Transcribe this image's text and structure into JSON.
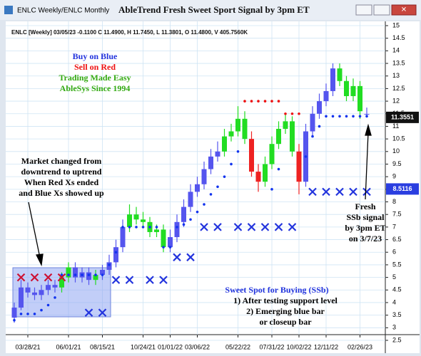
{
  "chart_data": {
    "type": "candlestick",
    "window_title": "ENLC Weekly/ENLC Monthly",
    "title": "AbleTrend Fresh Sweet Sport Signal by 3pm ET",
    "header": "ENLC [Weekly] 03/05/23 -0.1100 C 11.4900, H 11.7450, L 11.3801, O 11.4800, V 405.7560K",
    "legend_lines": [
      "Buy on Blue",
      "Sell on Red",
      "Trading Made Easy",
      "AbleSys Since 1994"
    ],
    "left_note": [
      "Market changed from",
      "downtrend to uptrend",
      "When Red Xs ended",
      "and Blue Xs showed up"
    ],
    "right_note": [
      "Fresh",
      "SSb signal",
      "by 3pm ET",
      "on 3/7/23"
    ],
    "bottom_note": [
      "Sweet Spot for Buying (SSb)",
      "1) After testing support level",
      "2) Emerging blue bar",
      "or closeup bar"
    ],
    "price_labels": [
      11.3551,
      8.5116
    ],
    "categories": [
      null,
      null,
      "03/28/21",
      null,
      null,
      null,
      null,
      null,
      "06/01/21",
      null,
      null,
      null,
      null,
      "08/15/21",
      null,
      null,
      null,
      null,
      null,
      "10/24/21",
      null,
      null,
      null,
      "01/01/22",
      null,
      null,
      null,
      "03/06/22",
      null,
      null,
      null,
      null,
      null,
      "05/22/22",
      null,
      null,
      null,
      null,
      "07/31/22",
      null,
      null,
      null,
      "10/02/22",
      null,
      null,
      null,
      "12/11/22",
      null,
      null,
      null,
      null,
      "02/26/23",
      null
    ],
    "open": [
      3.4,
      3.8,
      4.6,
      4.4,
      4.3,
      4.5,
      4.7,
      4.6,
      5.0,
      5.4,
      5.0,
      5.2,
      4.9,
      5.1,
      5.3,
      5.6,
      6.2,
      7.0,
      7.5,
      7.3,
      7.2,
      6.8,
      6.9,
      6.2,
      6.6,
      7.2,
      7.8,
      8.4,
      8.7,
      9.3,
      9.8,
      10.0,
      10.6,
      10.8,
      11.3,
      10.5,
      9.2,
      8.8,
      9.5,
      10.3,
      10.9,
      11.2,
      10.0,
      8.8,
      10.8,
      11.5,
      12.0,
      12.4,
      13.3,
      12.8,
      12.2,
      12.6,
      11.48
    ],
    "high": [
      4.0,
      4.9,
      4.8,
      4.6,
      4.7,
      4.9,
      4.9,
      5.2,
      5.6,
      5.6,
      5.4,
      5.4,
      5.3,
      5.5,
      5.9,
      6.5,
      7.3,
      7.9,
      7.8,
      7.6,
      7.4,
      7.1,
      7.1,
      6.9,
      7.5,
      8.1,
      8.7,
      9.0,
      9.6,
      10.1,
      10.4,
      10.9,
      11.1,
      11.8,
      11.6,
      10.8,
      9.5,
      9.8,
      10.6,
      11.2,
      11.5,
      11.4,
      10.3,
      11.1,
      11.8,
      12.3,
      12.7,
      13.5,
      13.5,
      13.0,
      12.9,
      12.8,
      11.745
    ],
    "low": [
      3.2,
      3.7,
      4.2,
      4.1,
      4.1,
      4.3,
      4.4,
      4.4,
      4.8,
      4.8,
      4.8,
      4.7,
      4.7,
      4.9,
      5.1,
      5.4,
      6.0,
      6.8,
      7.1,
      7.0,
      6.6,
      6.6,
      6.0,
      6.0,
      6.4,
      7.0,
      7.6,
      8.2,
      8.5,
      9.1,
      9.6,
      9.8,
      10.4,
      10.6,
      10.3,
      9.0,
      8.4,
      8.6,
      9.3,
      10.1,
      10.7,
      9.8,
      8.3,
      8.6,
      10.6,
      11.3,
      11.8,
      12.2,
      12.6,
      12.0,
      12.0,
      11.3,
      11.3801
    ],
    "close": [
      3.8,
      4.6,
      4.4,
      4.3,
      4.5,
      4.7,
      4.6,
      5.0,
      5.4,
      5.0,
      5.2,
      4.9,
      5.1,
      5.3,
      5.6,
      6.2,
      7.0,
      7.5,
      7.3,
      7.2,
      6.8,
      6.9,
      6.2,
      6.6,
      7.2,
      7.8,
      8.4,
      8.7,
      9.3,
      9.8,
      10.0,
      10.6,
      10.8,
      11.3,
      10.5,
      9.2,
      8.8,
      9.5,
      10.3,
      10.9,
      11.2,
      10.0,
      8.8,
      10.8,
      11.5,
      12.0,
      12.4,
      13.3,
      12.8,
      12.2,
      12.6,
      11.6,
      11.49
    ],
    "colors": [
      "#5555ee",
      "#5555ee",
      "#5555ee",
      "#5555ee",
      "#5555ee",
      "#5555ee",
      "#5555ee",
      "#22dd22",
      "#22dd22",
      "#5555ee",
      "#5555ee",
      "#5555ee",
      "#22dd22",
      "#5555ee",
      "#5555ee",
      "#5555ee",
      "#5555ee",
      "#22dd22",
      "#22dd22",
      "#22dd22",
      "#22dd22",
      "#22dd22",
      "#22dd22",
      "#5555ee",
      "#5555ee",
      "#5555ee",
      "#5555ee",
      "#5555ee",
      "#5555ee",
      "#5555ee",
      "#5555ee",
      "#22dd22",
      "#22dd22",
      "#22dd22",
      "#22dd22",
      "#ee2222",
      "#ee2222",
      "#22dd22",
      "#22dd22",
      "#22dd22",
      "#22dd22",
      "#22dd22",
      "#ee2222",
      "#5555ee",
      "#5555ee",
      "#5555ee",
      "#5555ee",
      "#5555ee",
      "#22dd22",
      "#22dd22",
      "#22dd22",
      "#22dd22",
      "#5555ee"
    ],
    "blue_stops": [
      3.3,
      3.55,
      3.55,
      3.55,
      3.7,
      3.9,
      4.2,
      5.1,
      5.1,
      5.1,
      5.1,
      5.1,
      5.1,
      5.1,
      5.5,
      6.0,
      7.0,
      7.0,
      7.0,
      7.0,
      7.0,
      7.0,
      6.2,
      6.2,
      7.0,
      7.1,
      7.3,
      7.6,
      7.9,
      8.3,
      8.6,
      9.0,
      9.5,
      10.0,
      null,
      null,
      null,
      null,
      8.5,
      9.3,
      null,
      null,
      null,
      9.8,
      10.6,
      11.0,
      11.4,
      11.4,
      11.4,
      11.4,
      11.4,
      11.4,
      11.4
    ],
    "red_stops": [
      null,
      null,
      null,
      null,
      null,
      null,
      null,
      null,
      null,
      null,
      null,
      null,
      null,
      null,
      null,
      null,
      null,
      null,
      null,
      null,
      null,
      null,
      null,
      null,
      null,
      null,
      null,
      null,
      null,
      null,
      null,
      null,
      null,
      null,
      12,
      12,
      12,
      12,
      12,
      12,
      11.5,
      11.5,
      11.5,
      null,
      null,
      null,
      null,
      null,
      null,
      null,
      null,
      null,
      null
    ],
    "blue_x": [
      null,
      null,
      null,
      null,
      null,
      null,
      null,
      null,
      null,
      null,
      null,
      3.6,
      null,
      3.6,
      null,
      4.9,
      null,
      4.9,
      null,
      null,
      4.9,
      null,
      4.9,
      null,
      5.8,
      null,
      5.8,
      null,
      7,
      null,
      7,
      null,
      null,
      7,
      null,
      7,
      null,
      7,
      null,
      7,
      null,
      7,
      null,
      null,
      8.4,
      null,
      8.4,
      null,
      8.4,
      null,
      8.4,
      null,
      8.4
    ],
    "red_x": [
      null,
      5,
      null,
      5,
      null,
      5,
      null,
      5,
      null,
      null,
      null,
      null,
      null,
      null,
      null,
      null,
      null,
      null,
      null,
      null,
      null,
      null,
      null,
      null,
      null,
      null,
      null,
      null,
      null,
      null,
      null,
      null,
      null,
      null,
      null,
      null,
      null,
      null,
      null,
      null,
      null,
      null,
      null,
      null,
      null,
      null,
      null,
      null,
      null,
      null,
      null,
      null,
      null
    ],
    "ylim": [
      2.5,
      15
    ],
    "yticks": [
      15,
      14.5,
      14,
      13.5,
      13,
      12.5,
      12,
      11.5,
      11,
      10.5,
      10,
      9.5,
      9,
      8.5,
      8,
      7.5,
      7,
      6.5,
      6,
      5.5,
      5,
      4.5,
      4,
      3.5,
      3,
      2.5
    ],
    "grid": true
  }
}
